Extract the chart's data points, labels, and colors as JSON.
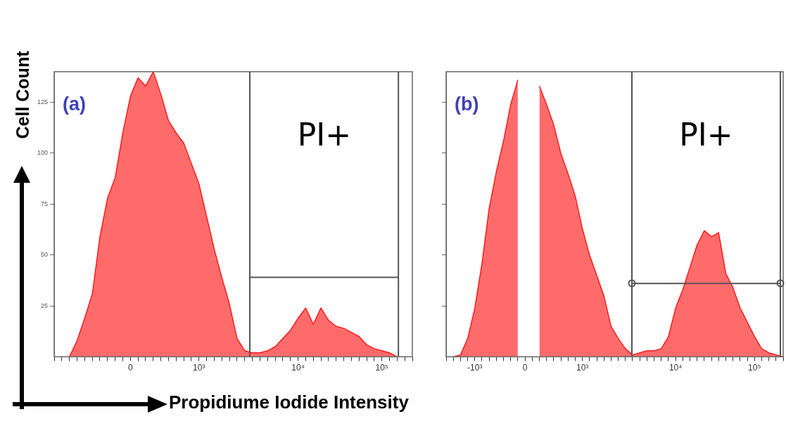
{
  "chart_data": [
    {
      "type": "area",
      "title": "(a)",
      "xlabel": "Propidiume Iodide Intensity",
      "ylabel": "Cell Count",
      "categories": [
        null,
        null,
        null,
        null,
        null,
        null,
        null,
        null,
        null,
        null,
        "0",
        null,
        null,
        null,
        null,
        null,
        null,
        null,
        null,
        "10³",
        null,
        null,
        null,
        null,
        null,
        null,
        null,
        null,
        null,
        null,
        null,
        null,
        "10⁴",
        null,
        null,
        null,
        null,
        null,
        null,
        null,
        null,
        null,
        null,
        "10⁵",
        null,
        null,
        null,
        null
      ],
      "series": [
        {
          "color": "#ff0000",
          "values": [
            0,
            0,
            0,
            8,
            19,
            31,
            59,
            78,
            88,
            110,
            128,
            137,
            133,
            140,
            129,
            116,
            110,
            105,
            95,
            85,
            69,
            53,
            39,
            26,
            9,
            3,
            2,
            2,
            3,
            5,
            9,
            13,
            19,
            24,
            16,
            24,
            18,
            15,
            14,
            12,
            10,
            6,
            4,
            3,
            2,
            0,
            0,
            0
          ]
        }
      ],
      "ylim": [
        0,
        140
      ],
      "yticks": [
        25,
        50,
        75,
        100,
        125
      ],
      "ref_lines": [
        {
          "axis": "y",
          "value": 39
        }
      ],
      "annotations": [
        "PI+"
      ]
    },
    {
      "type": "area",
      "title": "(b)",
      "categories": [
        null,
        null,
        null,
        null,
        "-10³",
        null,
        null,
        null,
        null,
        null,
        null,
        "0",
        null,
        null,
        null,
        null,
        null,
        null,
        null,
        "10³",
        null,
        null,
        null,
        null,
        null,
        null,
        null,
        null,
        null,
        null,
        null,
        null,
        "10⁴",
        null,
        null,
        null,
        null,
        null,
        null,
        null,
        null,
        null,
        null,
        "10⁵",
        null,
        null,
        null,
        null
      ],
      "series": [
        {
          "color": "#ff0000",
          "values": [
            0,
            0,
            1,
            9,
            24,
            46,
            73,
            91,
            106,
            124,
            136,
            null,
            null,
            133,
            124,
            114,
            100,
            90,
            79,
            63,
            50,
            40,
            30,
            15,
            9,
            4,
            1,
            2,
            3,
            3,
            4,
            10,
            24,
            33,
            44,
            55,
            62,
            59,
            61,
            41,
            34,
            24,
            17,
            10,
            4,
            2,
            1,
            0
          ]
        }
      ],
      "ylim": [
        0,
        140
      ],
      "yticks": [
        25,
        50,
        75,
        100,
        125
      ],
      "tick_labels": "x",
      "ref_lines": [
        {
          "axis": "y",
          "value": 36
        }
      ],
      "annotations": [
        "PI+"
      ]
    }
  ]
}
